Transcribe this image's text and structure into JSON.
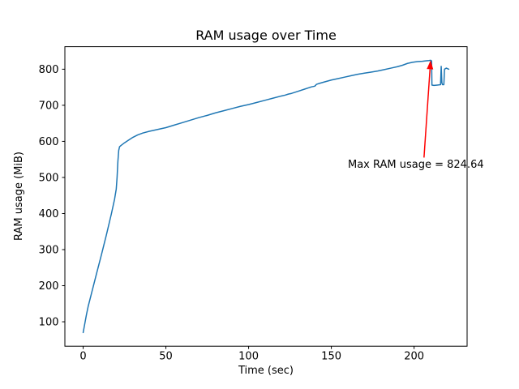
{
  "figure": {
    "background": "#ffffff"
  },
  "chart_data": {
    "type": "line",
    "title": "RAM usage over Time",
    "xlabel": "Time (sec)",
    "ylabel": "RAM usage (MiB)",
    "xlim": [
      -11.05,
      232.05
    ],
    "ylim": [
      32.3,
      862.4
    ],
    "xticks": [
      0,
      50,
      100,
      150,
      200
    ],
    "yticks": [
      100,
      200,
      300,
      400,
      500,
      600,
      700,
      800
    ],
    "grid": false,
    "legend": false,
    "line_color": "#1f77b4",
    "series": [
      {
        "name": "RAM usage",
        "x": [
          0,
          1,
          2,
          3,
          5,
          8,
          11,
          14,
          17,
          19,
          20,
          20.5,
          21,
          21.5,
          22,
          23,
          25,
          27,
          30,
          33,
          36,
          40,
          45,
          50,
          55,
          60,
          65,
          70,
          75,
          80,
          85,
          90,
          95,
          100,
          105,
          110,
          115,
          120,
          122,
          124,
          126,
          130,
          134,
          138,
          140,
          141,
          143,
          146,
          150,
          154,
          158,
          162,
          166,
          170,
          174,
          178,
          182,
          186,
          190,
          193,
          196,
          199,
          202,
          205,
          207,
          209,
          210,
          210.6,
          210.8,
          212,
          214,
          216,
          216.4,
          216.8,
          217.2,
          218,
          218.4,
          219.5,
          221
        ],
        "y": [
          70,
          95,
          120,
          142,
          178,
          232,
          285,
          340,
          398,
          440,
          468,
          500,
          545,
          575,
          585,
          589,
          596,
          602,
          611,
          618,
          623,
          628,
          633,
          638,
          645,
          652,
          659,
          666,
          672,
          679,
          685,
          691,
          697,
          702,
          708,
          714,
          720,
          726,
          728,
          731,
          733,
          739,
          745,
          751,
          753,
          758,
          761,
          765,
          770,
          774,
          778,
          782,
          786,
          789,
          792,
          795,
          799,
          803,
          807,
          811,
          816,
          819,
          821,
          822,
          823,
          824,
          824.64,
          823,
          756,
          755,
          756,
          757,
          808,
          762,
          757,
          757,
          800,
          803,
          800
        ]
      }
    ],
    "annotation": {
      "text": "Max RAM usage = 824.64",
      "color": "#ff0000",
      "xy": [
        210,
        824.64
      ],
      "arrow_tail": [
        206,
        555
      ],
      "text_pos": [
        160,
        527
      ]
    },
    "max_value": 824.64
  }
}
